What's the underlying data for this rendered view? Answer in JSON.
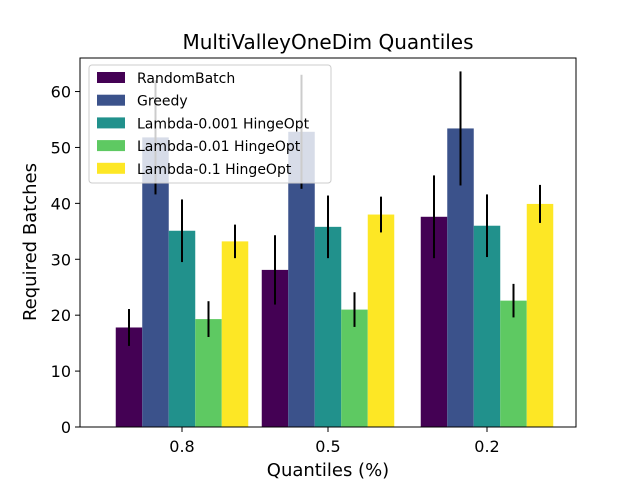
{
  "chart_data": {
    "type": "bar",
    "title": "MultiValleyOneDim Quantiles",
    "xlabel": "Quantiles (%)",
    "ylabel": "Required Batches",
    "categories": [
      "0.8",
      "0.5",
      "0.2"
    ],
    "ylim": [
      0,
      66
    ],
    "yticks": [
      0,
      10,
      20,
      30,
      40,
      50,
      60
    ],
    "legend_position": "top-left",
    "series": [
      {
        "name": "RandomBatch",
        "color": "#440154",
        "values": [
          17.8,
          28.1,
          37.6
        ],
        "err": [
          3.3,
          6.2,
          7.4
        ]
      },
      {
        "name": "Greedy",
        "color": "#3b528b",
        "values": [
          51.8,
          52.8,
          53.4
        ],
        "err": [
          10.2,
          10.2,
          10.2
        ]
      },
      {
        "name": "Lambda-0.001 HingeOpt",
        "color": "#21918c",
        "values": [
          35.1,
          35.8,
          36.0
        ],
        "err": [
          5.6,
          5.6,
          5.6
        ]
      },
      {
        "name": "Lambda-0.01 HingeOpt",
        "color": "#5ec962",
        "values": [
          19.3,
          21.0,
          22.6
        ],
        "err": [
          3.2,
          3.1,
          3.0
        ]
      },
      {
        "name": "Lambda-0.1 HingeOpt",
        "color": "#fde725",
        "values": [
          33.2,
          38.0,
          39.9
        ],
        "err": [
          3.0,
          3.2,
          3.4
        ]
      }
    ]
  }
}
